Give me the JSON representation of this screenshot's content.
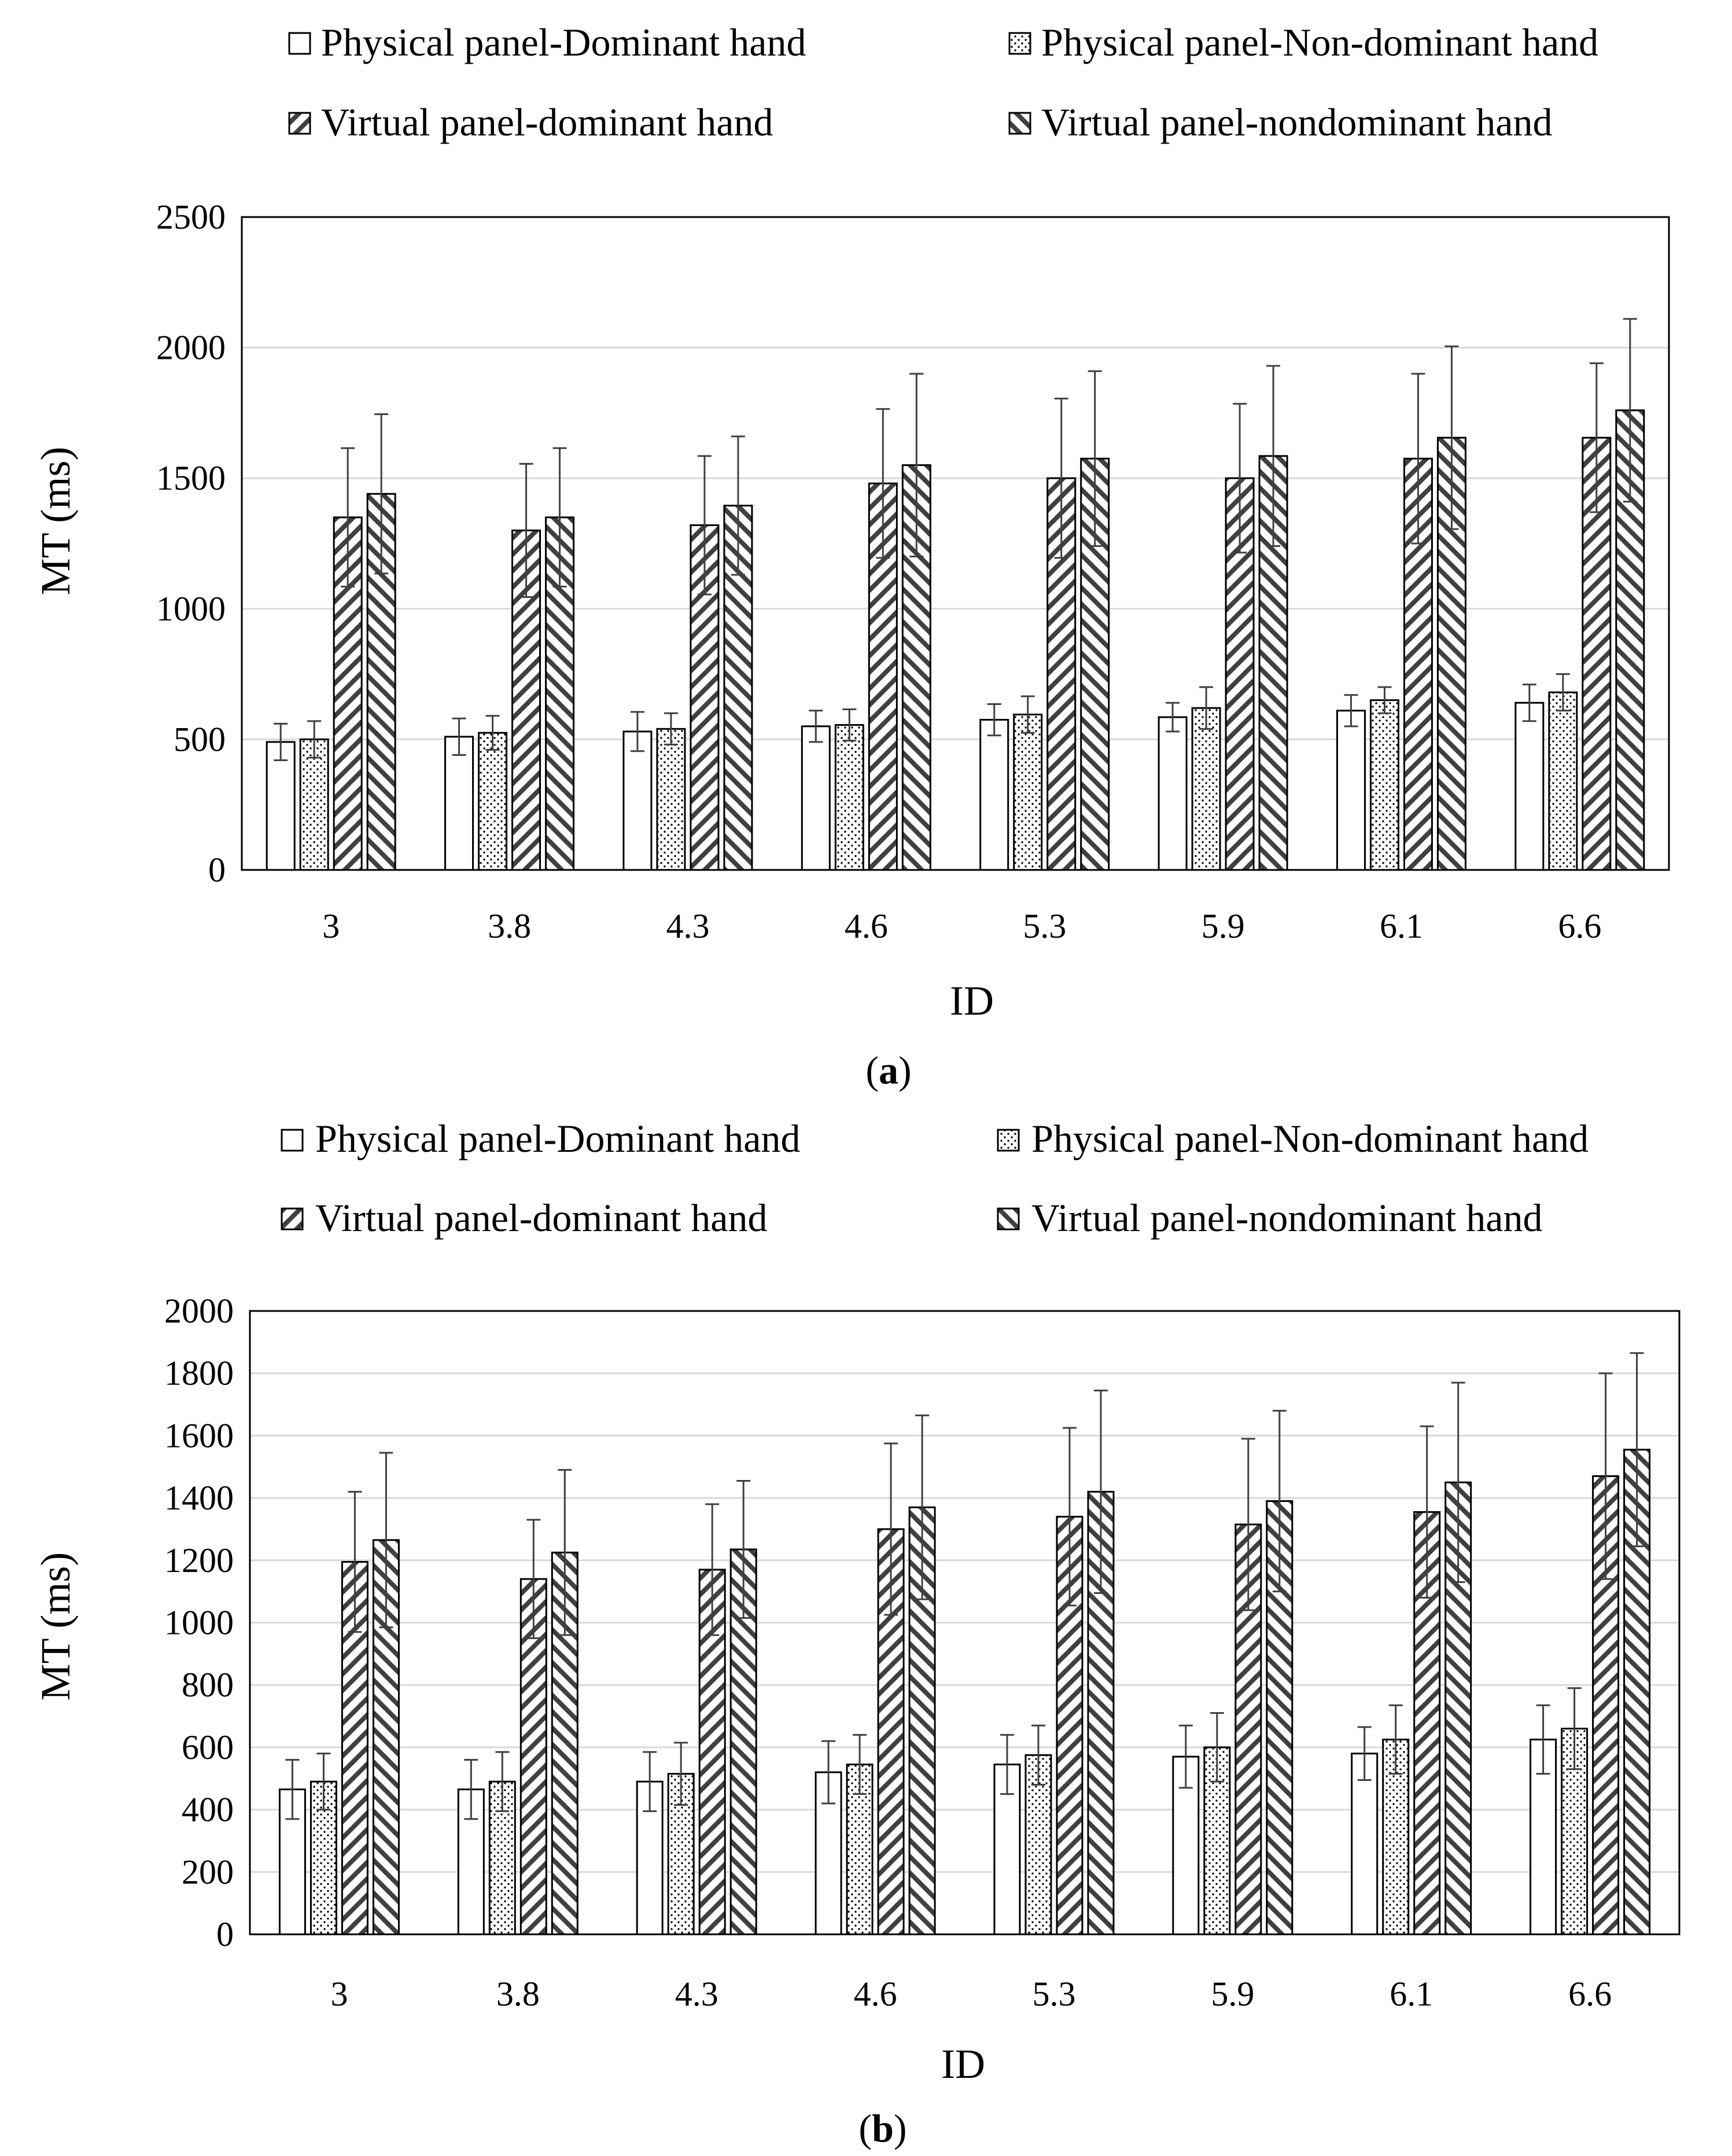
{
  "series_names": [
    "Physical panel-Dominant hand",
    "Physical panel-Non-dominant hand",
    "Virtual panel-dominant hand",
    "Virtual panel-nondominant hand"
  ],
  "colors": {
    "ink": "#000000",
    "background": "#ffffff",
    "gridline": "#d9d9d9"
  },
  "chart_data": [
    {
      "type": "bar",
      "caption": "a",
      "title": "",
      "xlabel": "ID",
      "ylabel": "MT (ms)",
      "ylim": [
        0,
        2500
      ],
      "yticks": [
        0,
        500,
        1000,
        1500,
        2000,
        2500
      ],
      "grid": true,
      "legend": "top",
      "categories": [
        "3",
        "3.8",
        "4.3",
        "4.6",
        "5.3",
        "5.9",
        "6.1",
        "6.6"
      ],
      "series": [
        {
          "name": "Physical panel-Dominant hand",
          "pattern": "empty",
          "values": [
            490,
            510,
            530,
            550,
            575,
            585,
            610,
            640
          ],
          "errors": [
            70,
            70,
            75,
            60,
            60,
            55,
            60,
            70
          ]
        },
        {
          "name": "Physical panel-Non-dominant hand",
          "pattern": "dots",
          "values": [
            500,
            525,
            540,
            555,
            595,
            620,
            650,
            680
          ],
          "errors": [
            70,
            65,
            60,
            60,
            70,
            80,
            50,
            70
          ]
        },
        {
          "name": "Virtual panel-dominant hand",
          "pattern": "diag-up",
          "values": [
            1350,
            1300,
            1320,
            1480,
            1500,
            1500,
            1575,
            1655
          ],
          "errors": [
            265,
            255,
            265,
            285,
            305,
            285,
            325,
            285
          ]
        },
        {
          "name": "Virtual panel-nondominant hand",
          "pattern": "diag-down",
          "values": [
            1440,
            1350,
            1395,
            1550,
            1575,
            1585,
            1655,
            1760
          ],
          "errors": [
            305,
            265,
            265,
            350,
            335,
            345,
            350,
            350
          ]
        }
      ]
    },
    {
      "type": "bar",
      "caption": "b",
      "title": "",
      "xlabel": "ID",
      "ylabel": "MT (ms)",
      "ylim": [
        0,
        2000
      ],
      "yticks": [
        0,
        200,
        400,
        600,
        800,
        1000,
        1200,
        1400,
        1600,
        1800,
        2000
      ],
      "grid": true,
      "legend": "top",
      "categories": [
        "3",
        "3.8",
        "4.3",
        "4.6",
        "5.3",
        "5.9",
        "6.1",
        "6.6"
      ],
      "series": [
        {
          "name": "Physical panel-Dominant hand",
          "pattern": "empty",
          "values": [
            465,
            465,
            490,
            520,
            545,
            570,
            580,
            625
          ],
          "errors": [
            95,
            95,
            95,
            100,
            95,
            100,
            85,
            110
          ]
        },
        {
          "name": "Physical panel-Non-dominant hand",
          "pattern": "dots",
          "values": [
            490,
            490,
            515,
            545,
            575,
            600,
            625,
            660
          ],
          "errors": [
            90,
            95,
            100,
            95,
            95,
            110,
            110,
            130
          ]
        },
        {
          "name": "Virtual panel-dominant hand",
          "pattern": "diag-up",
          "values": [
            1195,
            1140,
            1170,
            1300,
            1340,
            1315,
            1355,
            1470
          ],
          "errors": [
            225,
            190,
            210,
            275,
            285,
            275,
            275,
            330
          ]
        },
        {
          "name": "Virtual panel-nondominant hand",
          "pattern": "diag-down",
          "values": [
            1265,
            1225,
            1235,
            1370,
            1420,
            1390,
            1450,
            1555
          ],
          "errors": [
            280,
            265,
            220,
            295,
            325,
            290,
            320,
            310
          ]
        }
      ]
    }
  ]
}
